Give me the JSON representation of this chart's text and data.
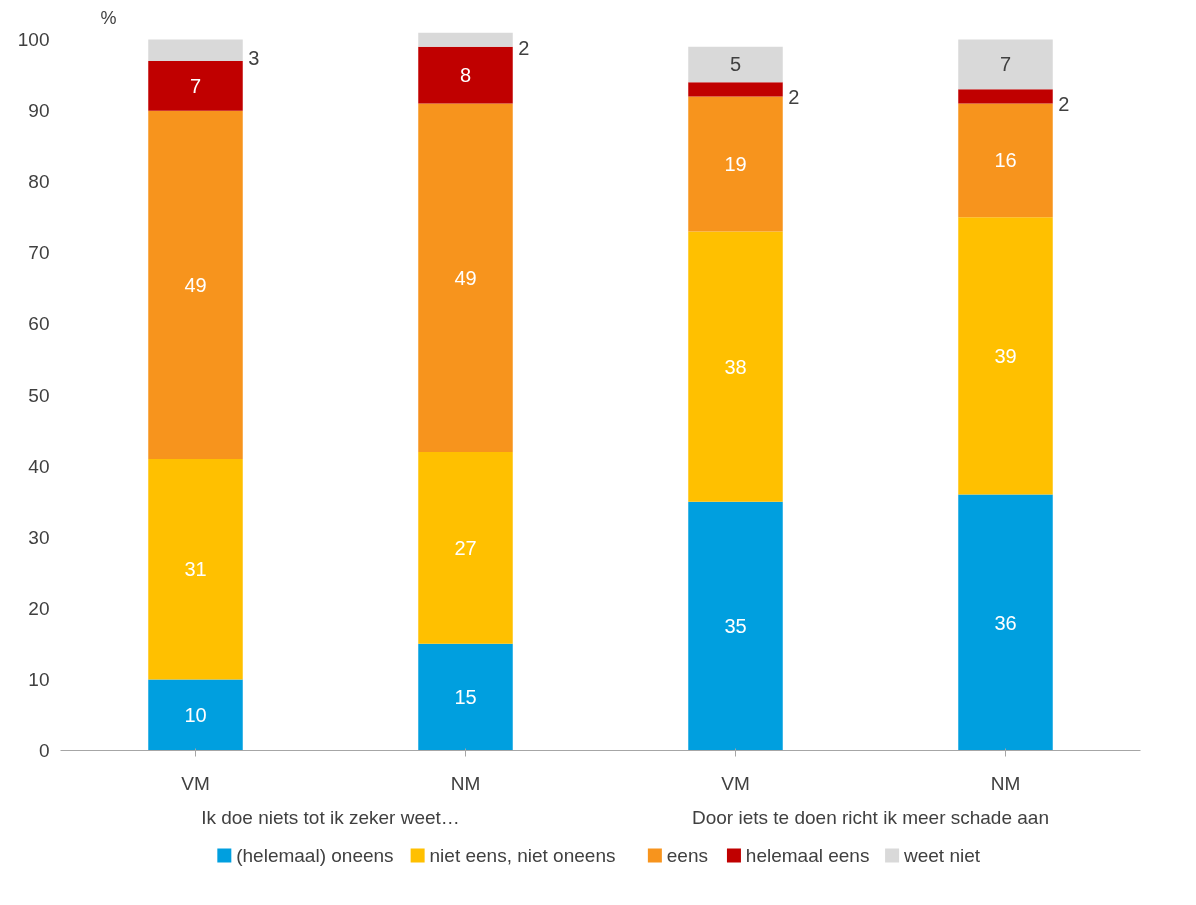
{
  "chart_data": {
    "type": "bar",
    "stacked": true,
    "ylabel": "%",
    "categories": [
      "VM",
      "NM",
      "VM",
      "NM"
    ],
    "annotations": [
      "Ik doe niets tot ik zeker weet…",
      "Door iets te doen richt ik meer schade aan"
    ],
    "series": [
      {
        "name": "(helemaal) oneens",
        "color": "#009fdf",
        "values": [
          10,
          15,
          35,
          36
        ]
      },
      {
        "name": "niet eens, niet oneens",
        "color": "#ffc000",
        "values": [
          31,
          27,
          38,
          39
        ]
      },
      {
        "name": "eens",
        "color": "#f7941d",
        "values": [
          49,
          49,
          19,
          16
        ]
      },
      {
        "name": "helemaal eens",
        "color": "#c00000",
        "values": [
          7,
          8,
          2,
          2
        ]
      },
      {
        "name": "weet niet",
        "color": "#d9d9d9",
        "values": [
          3,
          2,
          5,
          7
        ]
      }
    ],
    "ylim": [
      0,
      101
    ],
    "yticks": [
      0,
      10,
      20,
      30,
      40,
      50,
      60,
      70,
      80,
      90,
      100
    ],
    "grid": false,
    "data_labels": true,
    "legend": "bottom"
  }
}
